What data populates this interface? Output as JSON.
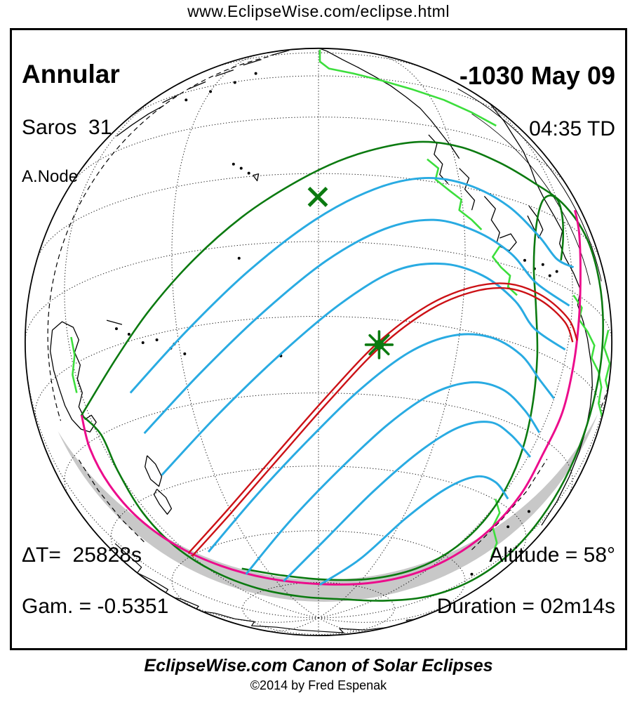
{
  "header": {
    "url": "www.EclipseWise.com/eclipse.html"
  },
  "eclipse": {
    "type": "Annular",
    "saros": "Saros  31",
    "node": "A.Node",
    "date": "-1030 May 09",
    "time": "04:35 TD",
    "delta_t": "ΔT=  25828s",
    "gamma": "Gam. = -0.5351",
    "altitude": "Altitude = 58°",
    "duration": "Duration = 02m14s"
  },
  "footer": {
    "title": "EclipseWise.com Canon of Solar Eclipses",
    "copyright": "©2014 by Fred Espenak"
  },
  "map": {
    "colors": {
      "limit_green": "#0B7A10",
      "max_eclipse_blue": "#29ABE2",
      "central_path_red": "#CC1116",
      "rise_set_magenta": "#EC0C8C",
      "coast_highlight_green": "#3CDE3C",
      "night_gray": "#C8C8C8",
      "land_outline": "#000000",
      "graticule": "#000000"
    },
    "markers": {
      "asterisk_marker": {
        "symbol": "asterisk",
        "color": "#0B7A10"
      },
      "x_marker": {
        "symbol": "x-cross",
        "color": "#0B7A10"
      }
    }
  }
}
